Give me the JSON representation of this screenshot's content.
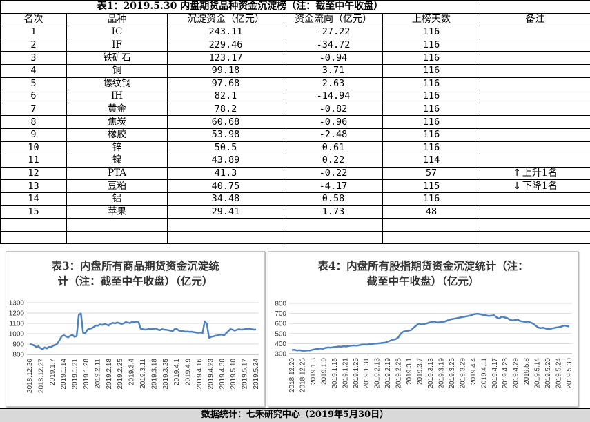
{
  "table": {
    "caption": "表1：2019.5.30 内盘期货品种资金沉淀榜（注：截至中午收盘）",
    "headers": [
      "名次",
      "品种",
      "沉淀资金（亿元）",
      "资金流向（亿元）",
      "上榜天数",
      "备注"
    ],
    "rows": [
      {
        "rank": "1",
        "name": "IC",
        "fund": "243.11",
        "flow": "-27.22",
        "days": "116",
        "note": ""
      },
      {
        "rank": "2",
        "name": "IF",
        "fund": "229.46",
        "flow": "-34.72",
        "days": "116",
        "note": ""
      },
      {
        "rank": "3",
        "name": "铁矿石",
        "fund": "123.17",
        "flow": "-0.94",
        "days": "116",
        "note": ""
      },
      {
        "rank": "4",
        "name": "铜",
        "fund": "99.18",
        "flow": "3.71",
        "days": "116",
        "note": ""
      },
      {
        "rank": "5",
        "name": "螺纹钢",
        "fund": "97.68",
        "flow": "2.63",
        "days": "116",
        "note": ""
      },
      {
        "rank": "6",
        "name": "IH",
        "fund": "82.1",
        "flow": "-14.94",
        "days": "116",
        "note": ""
      },
      {
        "rank": "7",
        "name": "黄金",
        "fund": "78.2",
        "flow": "-0.82",
        "days": "116",
        "note": ""
      },
      {
        "rank": "8",
        "name": "焦炭",
        "fund": "60.68",
        "flow": "-0.96",
        "days": "116",
        "note": ""
      },
      {
        "rank": "9",
        "name": "橡胶",
        "fund": "53.98",
        "flow": "-2.48",
        "days": "116",
        "note": ""
      },
      {
        "rank": "10",
        "name": "锌",
        "fund": "50.5",
        "flow": "0.61",
        "days": "116",
        "note": ""
      },
      {
        "rank": "11",
        "name": "镍",
        "fund": "43.89",
        "flow": "0.22",
        "days": "114",
        "note": ""
      },
      {
        "rank": "12",
        "name": "PTA",
        "fund": "41.3",
        "flow": "-0.22",
        "days": "57",
        "note": "上升1名",
        "note_arrow": "↑"
      },
      {
        "rank": "13",
        "name": "豆粕",
        "fund": "40.75",
        "flow": "-4.17",
        "days": "115",
        "note": "下降1名",
        "note_arrow": "↓"
      },
      {
        "rank": "14",
        "name": "铝",
        "fund": "34.48",
        "flow": "0.58",
        "days": "116",
        "note": ""
      },
      {
        "rank": "15",
        "name": "苹果",
        "fund": "29.41",
        "flow": "1.73",
        "days": "48",
        "note": ""
      }
    ]
  },
  "footer": "数据统计：七禾研究中心（2019年5月30日）",
  "chart_data": [
    {
      "type": "line",
      "title": "表3：内盘所有商品期货资金沉淀统计（注：截至中午收盘）（亿元）",
      "title_lines": [
        "表3：内盘所有商品期货资金沉淀统",
        "计（注：截至中午收盘）（亿元）"
      ],
      "ylim": [
        800,
        1300
      ],
      "yticks": [
        800,
        900,
        1000,
        1100,
        1200,
        1300
      ],
      "grid": "horizontal",
      "color": "#4f81bd",
      "x_ticks": [
        "2018.12.20",
        "2018.12.27",
        "2019.1.7",
        "2019.1.14",
        "2019.1.21",
        "2019.1.28",
        "2019.2.11",
        "2019.2.18",
        "2019.2.25",
        "2019.3.4",
        "2019.3.11",
        "2019.3.18",
        "2019.3.25",
        "2019.4.1",
        "2019.4.9",
        "2019.4.16",
        "2019.4.23",
        "2019.4.30",
        "2019.5.10",
        "2019.5.17",
        "2019.5.24"
      ],
      "values": [
        900,
        895,
        888,
        872,
        878,
        862,
        850,
        868,
        858,
        872,
        870,
        885,
        892,
        905,
        940,
        975,
        985,
        975,
        965,
        980,
        990,
        970,
        978,
        1185,
        1195,
        1010,
        1002,
        1038,
        1048,
        1052,
        1065,
        1080,
        1078,
        1090,
        1085,
        1095,
        1088,
        1080,
        1098,
        1105,
        1100,
        1108,
        1102,
        1095,
        1100,
        1112,
        1108,
        1102,
        1115,
        1110,
        1118,
        1112,
        1050,
        1045,
        1040,
        1042,
        1048,
        1045,
        1048,
        1052,
        1040,
        1035,
        1045,
        1040,
        1038,
        1035,
        1030,
        1025,
        1048,
        1045,
        1030,
        1028,
        1025,
        1020,
        1022,
        1018,
        1020,
        1015,
        1012,
        1010,
        1012,
        1008,
        1120,
        1095,
        960,
        970,
        975,
        980,
        985,
        990,
        992,
        985,
        1005,
        1025,
        1045,
        1040,
        1030,
        1038,
        1045,
        1040,
        1042,
        1045,
        1048,
        1050,
        1045,
        1040,
        1042
      ]
    },
    {
      "type": "line",
      "title": "表4：内盘所有股指期货资金沉淀统计（注：截至中午收盘）（亿元）",
      "title_lines": [
        "表4：内盘所有股指期货资金沉淀统计（注：",
        "截至中午收盘）（亿元）"
      ],
      "ylim": [
        300,
        800
      ],
      "yticks": [
        300,
        400,
        500,
        600,
        700,
        800
      ],
      "grid": "horizontal",
      "color": "#4f81bd",
      "x_ticks": [
        "2018.12.20",
        "2018.12.26",
        "2019.1.3",
        "2019.1.9",
        "2019.1.15",
        "2019.1.21",
        "2019.1.25",
        "2019.1.31",
        "2019.2.13",
        "2019.2.19",
        "2019.2.25",
        "2019.3.1",
        "2019.3.7",
        "2019.3.13",
        "2019.3.19",
        "2019.3.25",
        "2019.3.29",
        "2019.4.4",
        "2019.4.11",
        "2019.4.17",
        "2019.4.23",
        "2019.4.29",
        "2019.5.8",
        "2019.5.14",
        "2019.5.20",
        "2019.5.24",
        "2019.5.30"
      ],
      "values": [
        338,
        340,
        332,
        335,
        330,
        330,
        333,
        332,
        340,
        345,
        350,
        352,
        350,
        358,
        362,
        360,
        365,
        368,
        372,
        370,
        375,
        372,
        378,
        380,
        382,
        380,
        385,
        390,
        392,
        390,
        395,
        398,
        400,
        402,
        405,
        408,
        410,
        420,
        430,
        440,
        445,
        460,
        500,
        520,
        525,
        530,
        535,
        560,
        580,
        600,
        590,
        595,
        600,
        610,
        615,
        620,
        610,
        612,
        615,
        620,
        630,
        640,
        645,
        650,
        655,
        660,
        665,
        670,
        675,
        680,
        690,
        695,
        695,
        690,
        685,
        680,
        675,
        678,
        682,
        660,
        650,
        670,
        660,
        655,
        640,
        630,
        635,
        640,
        625,
        620,
        615,
        620,
        610,
        600,
        580,
        560,
        555,
        558,
        550,
        545,
        550,
        555,
        560,
        565,
        570,
        580,
        575,
        570
      ]
    }
  ]
}
